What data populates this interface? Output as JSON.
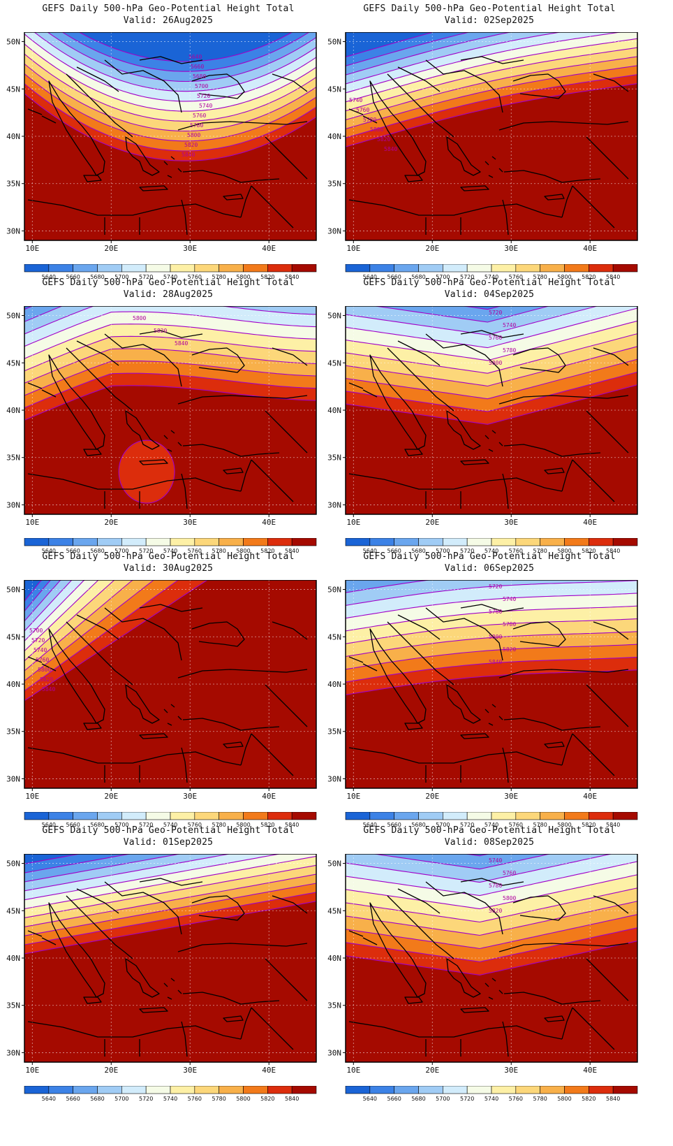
{
  "panels": [
    {
      "title": "GEFS Daily 500-hPa Geo-Potential Height Total",
      "valid": "Valid: 26Aug2025",
      "pattern": "trough",
      "contour_labels": [
        "5640",
        "5660",
        "5680",
        "5700",
        "5720",
        "5740",
        "5760",
        "5780",
        "5800",
        "5820",
        "5840"
      ]
    },
    {
      "title": "GEFS Daily 500-hPa Geo-Potential Height Total",
      "valid": "Valid: 02Sep2025",
      "pattern": "sw_trough",
      "contour_labels": [
        "5740",
        "5760",
        "5780",
        "5800",
        "5820",
        "5840"
      ]
    },
    {
      "title": "GEFS Daily 500-hPa Geo-Potential Height Total",
      "valid": "Valid: 28Aug2025",
      "pattern": "ridge",
      "contour_labels": [
        "5800",
        "5820",
        "5840"
      ]
    },
    {
      "title": "GEFS Daily 500-hPa Geo-Potential Height Total",
      "valid": "Valid: 04Sep2025",
      "pattern": "zonal_north",
      "contour_labels": [
        "5720",
        "5740",
        "5760",
        "5780",
        "5800"
      ]
    },
    {
      "title": "GEFS Daily 500-hPa Geo-Potential Height Total",
      "valid": "Valid: 30Aug2025",
      "pattern": "nw_trough",
      "contour_labels": [
        "5700",
        "5720",
        "5740",
        "5760",
        "5800",
        "5820",
        "5840"
      ]
    },
    {
      "title": "GEFS Daily 500-hPa Geo-Potential Height Total",
      "valid": "Valid: 06Sep2025",
      "pattern": "zonal_mid",
      "contour_labels": [
        "5720",
        "5740",
        "5760",
        "5780",
        "5800",
        "5820",
        "5840"
      ]
    },
    {
      "title": "GEFS Daily 500-hPa Geo-Potential Height Total",
      "valid": "Valid: 01Sep2025",
      "pattern": "nw_zonal",
      "contour_labels": []
    },
    {
      "title": "GEFS Daily 500-hPa Geo-Potential Height Total",
      "valid": "Valid: 08Sep2025",
      "pattern": "zonal_north2",
      "contour_labels": [
        "5740",
        "5760",
        "5780",
        "5800",
        "5820"
      ]
    }
  ],
  "axes": {
    "lat_ticks": [
      "50N",
      "45N",
      "40N",
      "35N",
      "30N"
    ],
    "lon_ticks": [
      "10E",
      "20E",
      "30E",
      "40E"
    ]
  },
  "colorbar": {
    "labels": [
      "5640",
      "5660",
      "5680",
      "5700",
      "5720",
      "5740",
      "5760",
      "5780",
      "5800",
      "5820",
      "5840"
    ],
    "colors": [
      "#1a64d6",
      "#3c82e6",
      "#6aa6ee",
      "#a0ccf5",
      "#d2ecfb",
      "#f5fbe6",
      "#fdf0a6",
      "#fcd77a",
      "#f8b04a",
      "#f27a1a",
      "#dc2d0c",
      "#a50a00"
    ]
  },
  "contour_color": "#a000c8"
}
